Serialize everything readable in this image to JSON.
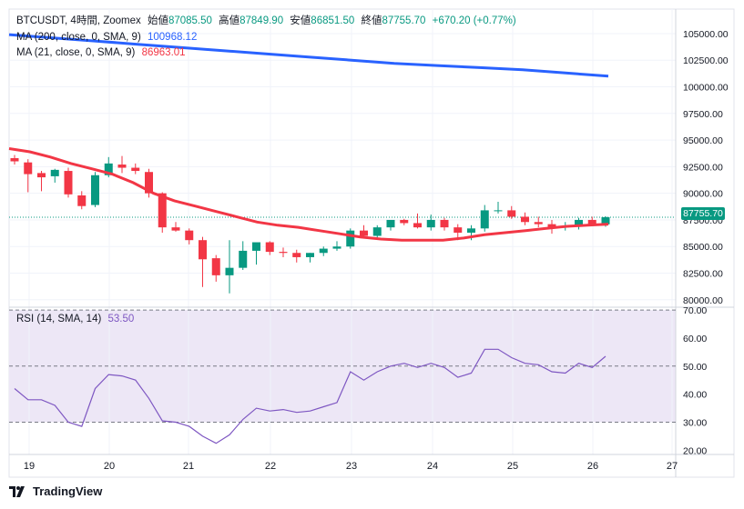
{
  "legend": {
    "symbol": "BTCUSDT, 4時間, Zoomex",
    "open_label": "始値",
    "open": "87085.50",
    "high_label": "高値",
    "high": "87849.90",
    "low_label": "安値",
    "low": "86851.50",
    "close_label": "終値",
    "close": "87755.70",
    "change": "+670.20 (+0.77%)",
    "ma200_label": "MA (200, close, 0, SMA, 9)",
    "ma200_value": "100968.12",
    "ma21_label": "MA (21, close, 0, SMA, 9)",
    "ma21_value": "86963.01",
    "rsi_label": "RSI (14, SMA, 14)",
    "rsi_value": "53.50"
  },
  "last_price_tag": "87755.70",
  "footer": {
    "brand": "TradingView"
  },
  "colors": {
    "up": "#089981",
    "down": "#f23645",
    "ma200": "#2962ff",
    "ma21": "#f23645",
    "rsi": "#7e57c2",
    "rsi_band": "#ede7f6",
    "grid": "#f0f3fa",
    "axis_text": "#131722"
  },
  "chart_data": [
    {
      "type": "candlestick",
      "title": "BTCUSDT, 4時間, Zoomex",
      "x_tick_labels": [
        "19",
        "20",
        "21",
        "22",
        "23",
        "24",
        "25",
        "26",
        "27"
      ],
      "y_tick_labels": [
        "105000.00",
        "102500.00",
        "100000.00",
        "97500.00",
        "95000.00",
        "92500.00",
        "90000.00",
        "87500.00",
        "85000.00",
        "82500.00",
        "80000.00"
      ],
      "ylim": [
        79300,
        107300
      ],
      "candles": [
        {
          "o": 93300,
          "h": 93600,
          "l": 92700,
          "c": 93000
        },
        {
          "o": 92900,
          "h": 93200,
          "l": 90100,
          "c": 91800
        },
        {
          "o": 91900,
          "h": 92100,
          "l": 90200,
          "c": 91500
        },
        {
          "o": 91600,
          "h": 92300,
          "l": 91000,
          "c": 92200
        },
        {
          "o": 92100,
          "h": 92400,
          "l": 89600,
          "c": 89900
        },
        {
          "o": 89800,
          "h": 90200,
          "l": 88500,
          "c": 88800
        },
        {
          "o": 88900,
          "h": 92000,
          "l": 88700,
          "c": 91700
        },
        {
          "o": 91700,
          "h": 93400,
          "l": 91500,
          "c": 92800
        },
        {
          "o": 92700,
          "h": 93500,
          "l": 91900,
          "c": 92400
        },
        {
          "o": 92400,
          "h": 92800,
          "l": 91800,
          "c": 92100
        },
        {
          "o": 92000,
          "h": 92300,
          "l": 89600,
          "c": 90000
        },
        {
          "o": 90000,
          "h": 90100,
          "l": 86300,
          "c": 86800
        },
        {
          "o": 86800,
          "h": 87300,
          "l": 86400,
          "c": 86500
        },
        {
          "o": 86500,
          "h": 86700,
          "l": 85200,
          "c": 85600
        },
        {
          "o": 85600,
          "h": 85900,
          "l": 81200,
          "c": 83800
        },
        {
          "o": 83900,
          "h": 84200,
          "l": 81700,
          "c": 82300
        },
        {
          "o": 82300,
          "h": 85600,
          "l": 80600,
          "c": 83000
        },
        {
          "o": 83000,
          "h": 85500,
          "l": 82800,
          "c": 84600
        },
        {
          "o": 84600,
          "h": 85300,
          "l": 83300,
          "c": 85400
        },
        {
          "o": 85400,
          "h": 85500,
          "l": 84200,
          "c": 84500
        },
        {
          "o": 84500,
          "h": 84900,
          "l": 84000,
          "c": 84400
        },
        {
          "o": 84400,
          "h": 84700,
          "l": 83500,
          "c": 84000
        },
        {
          "o": 84000,
          "h": 84400,
          "l": 83500,
          "c": 84400
        },
        {
          "o": 84400,
          "h": 85000,
          "l": 84100,
          "c": 84800
        },
        {
          "o": 84800,
          "h": 85500,
          "l": 84600,
          "c": 85000
        },
        {
          "o": 85000,
          "h": 86700,
          "l": 84800,
          "c": 86500
        },
        {
          "o": 86500,
          "h": 87000,
          "l": 85900,
          "c": 86000
        },
        {
          "o": 86000,
          "h": 87000,
          "l": 85800,
          "c": 86800
        },
        {
          "o": 86800,
          "h": 87500,
          "l": 86500,
          "c": 87500
        },
        {
          "o": 87500,
          "h": 87600,
          "l": 87000,
          "c": 87200
        },
        {
          "o": 87200,
          "h": 88100,
          "l": 86700,
          "c": 86800
        },
        {
          "o": 86800,
          "h": 88000,
          "l": 86500,
          "c": 87500
        },
        {
          "o": 87500,
          "h": 87700,
          "l": 86500,
          "c": 86800
        },
        {
          "o": 86800,
          "h": 87100,
          "l": 85600,
          "c": 86300
        },
        {
          "o": 86300,
          "h": 87000,
          "l": 85600,
          "c": 86700
        },
        {
          "o": 86700,
          "h": 88900,
          "l": 86400,
          "c": 88400
        },
        {
          "o": 88400,
          "h": 89200,
          "l": 88100,
          "c": 88400
        },
        {
          "o": 88400,
          "h": 88800,
          "l": 87600,
          "c": 87800
        },
        {
          "o": 87800,
          "h": 88200,
          "l": 87000,
          "c": 87300
        },
        {
          "o": 87300,
          "h": 87800,
          "l": 86800,
          "c": 87100
        },
        {
          "o": 87100,
          "h": 87500,
          "l": 86200,
          "c": 86700
        },
        {
          "o": 86800,
          "h": 87300,
          "l": 86500,
          "c": 86900
        },
        {
          "o": 86900,
          "h": 87700,
          "l": 86600,
          "c": 87500
        },
        {
          "o": 87500,
          "h": 87800,
          "l": 86900,
          "c": 87100
        },
        {
          "o": 87085.5,
          "h": 87849.9,
          "l": 86851.5,
          "c": 87755.7
        }
      ],
      "ma200": [
        104900,
        104600,
        104300,
        104000,
        103700,
        103400,
        103100,
        102800,
        102500,
        102200,
        102000,
        101800,
        101600,
        101300,
        101000
      ],
      "ma21": [
        94200,
        93900,
        93400,
        92800,
        92300,
        91800,
        91000,
        90000,
        89300,
        88800,
        88300,
        87800,
        87300,
        87000,
        86800,
        86500,
        86200,
        85900,
        85700,
        85600,
        85600,
        85600,
        85800,
        86100,
        86300,
        86500,
        86700,
        86900,
        87000,
        87100
      ],
      "last_price": 87755.7
    },
    {
      "type": "line",
      "title": "RSI (14, SMA, 14)",
      "ylim": [
        18.5,
        71
      ],
      "y_tick_labels": [
        "70.00",
        "60.00",
        "50.00",
        "40.00",
        "30.00",
        "20.00"
      ],
      "bands": [
        30,
        50,
        70
      ],
      "values": [
        42,
        38,
        38,
        36,
        30,
        28.5,
        42,
        47,
        46.5,
        45,
        38.5,
        30.5,
        30,
        28.5,
        25,
        22.5,
        25.5,
        31,
        35,
        34,
        34.5,
        33.5,
        34,
        35.5,
        37,
        48,
        45,
        48,
        50,
        51,
        49.5,
        51,
        49.5,
        46,
        47.5,
        56,
        56,
        53,
        51,
        50.5,
        48,
        47.5,
        51,
        49.5,
        53.5
      ],
      "last_value": 53.5
    }
  ]
}
